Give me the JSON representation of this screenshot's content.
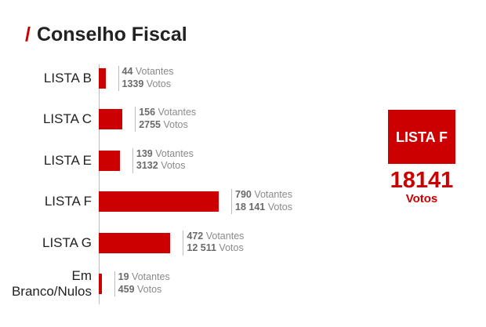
{
  "title": {
    "slash": "/",
    "text": "Conselho Fiscal"
  },
  "chart_data": {
    "type": "bar",
    "orientation": "horizontal",
    "categories": [
      "LISTA B",
      "LISTA C",
      "LISTA E",
      "LISTA F",
      "LISTA G",
      "Em Branco/Nulos"
    ],
    "series": [
      {
        "name": "Votantes",
        "values": [
          44,
          156,
          139,
          790,
          472,
          19
        ]
      },
      {
        "name": "Votos",
        "values": [
          1339,
          2755,
          3132,
          18141,
          12511,
          459
        ]
      }
    ],
    "value_labels": [
      {
        "votantes": "44",
        "votantes_unit": "Votantes",
        "votos": "1339",
        "votos_unit": "Votos"
      },
      {
        "votantes": "156",
        "votantes_unit": "Votantes",
        "votos": "2755",
        "votos_unit": "Votos"
      },
      {
        "votantes": "139",
        "votantes_unit": "Votantes",
        "votos": "3132",
        "votos_unit": "Votos"
      },
      {
        "votantes": "790",
        "votantes_unit": "Votantes",
        "votos": "18 141",
        "votos_unit": "Votos"
      },
      {
        "votantes": "472",
        "votantes_unit": "Votantes",
        "votos": "12 511",
        "votos_unit": "Votos"
      },
      {
        "votantes": "19",
        "votantes_unit": "Votantes",
        "votos": "459",
        "votos_unit": "Votos"
      }
    ],
    "bar_series": "Votantes",
    "bar_color": "#cc0000",
    "grid": false
  },
  "winner": {
    "name": "LISTA F",
    "value": "18141",
    "unit": "Votos"
  },
  "colors": {
    "accent": "#cc0000",
    "text": "#222222",
    "muted": "#8a8a8a"
  }
}
